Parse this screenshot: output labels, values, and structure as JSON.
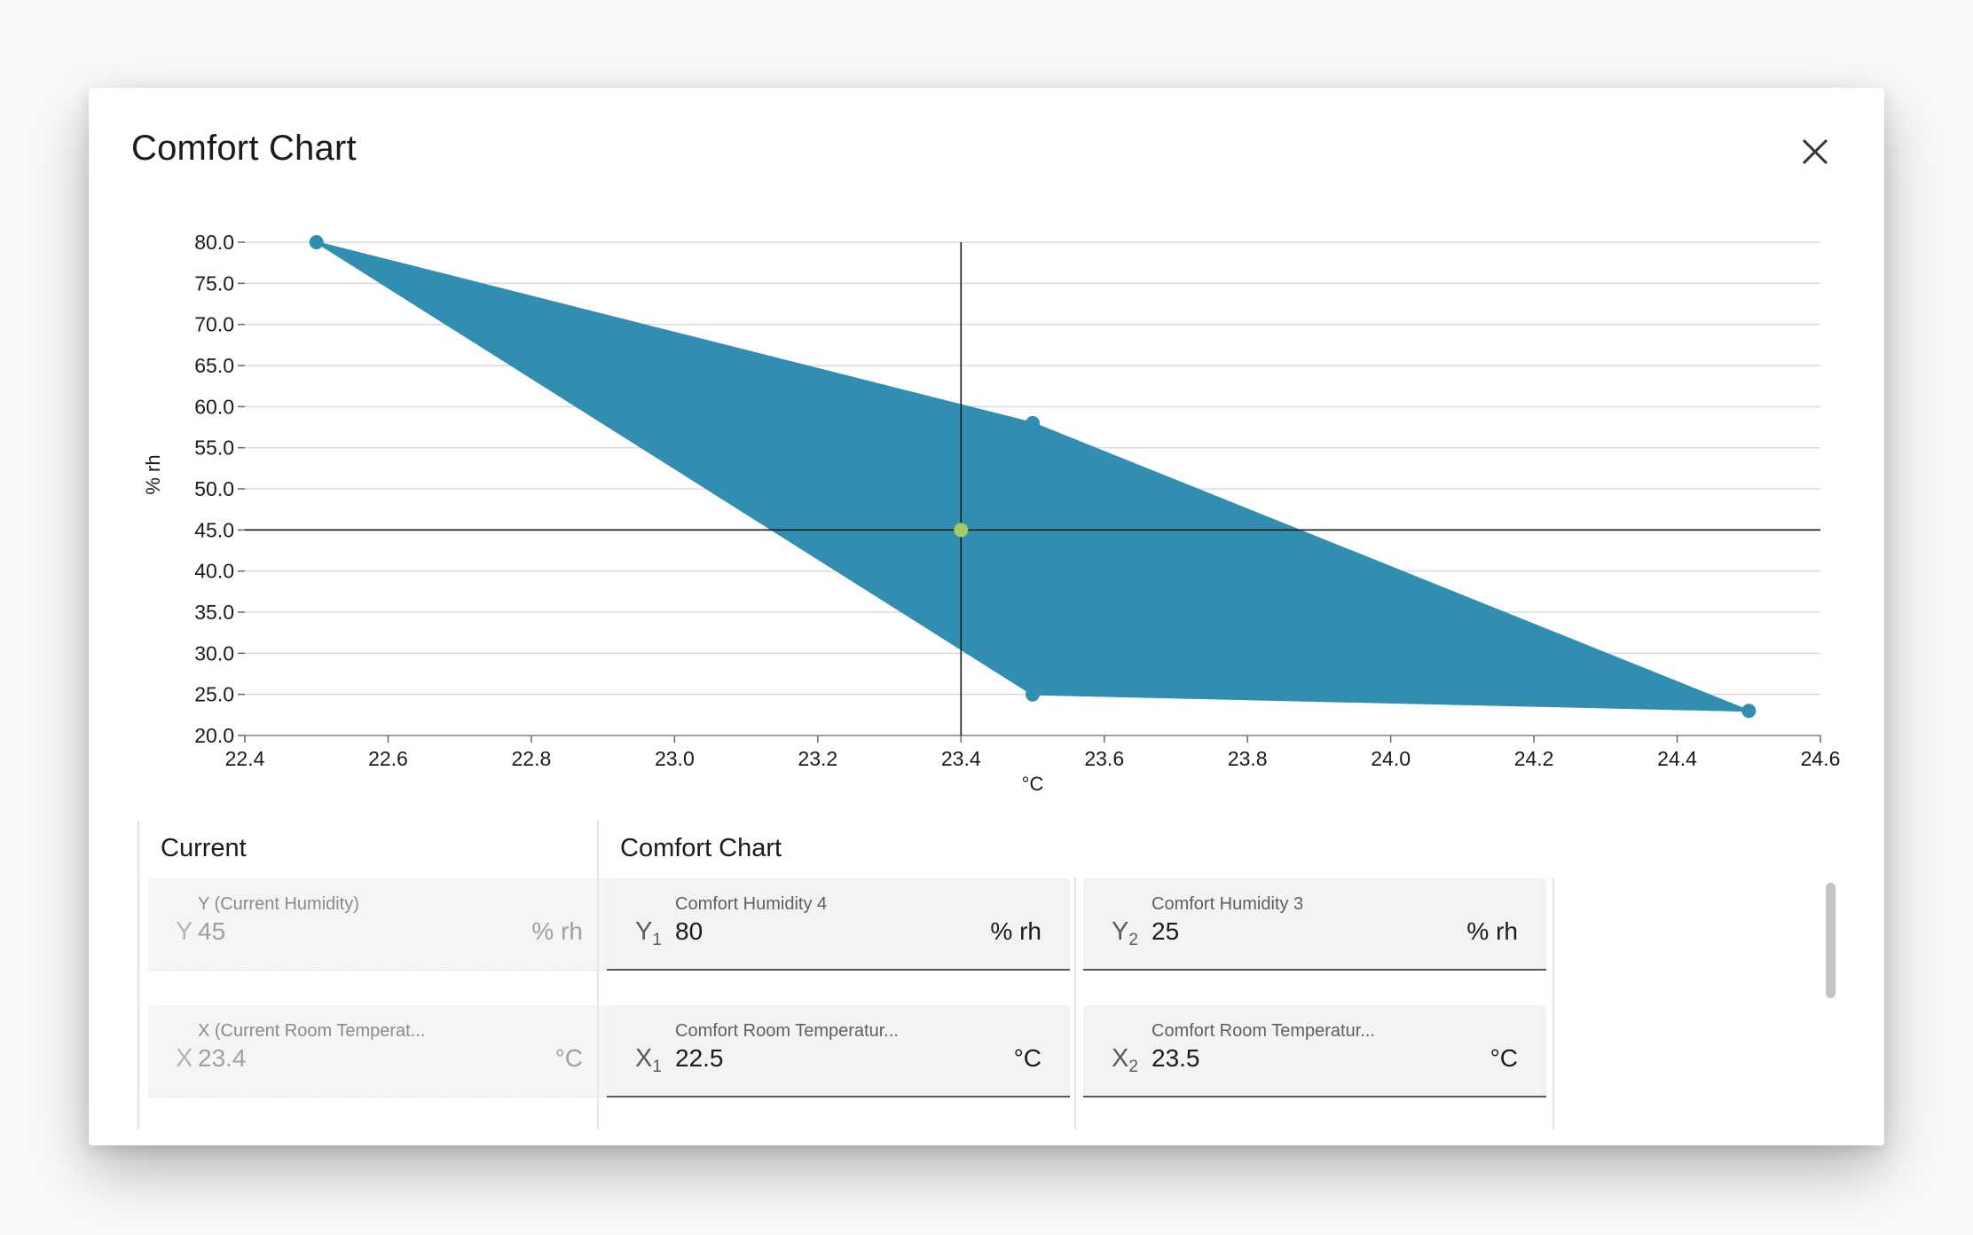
{
  "dialog": {
    "title": "Comfort Chart",
    "close_icon": "close-icon"
  },
  "chart_data": {
    "type": "area",
    "xlabel": "°C",
    "ylabel": "% rh",
    "xlim": [
      22.4,
      24.6
    ],
    "ylim": [
      20.0,
      80.0
    ],
    "x_ticks": [
      "22.4",
      "22.6",
      "22.8",
      "23.0",
      "23.2",
      "23.4",
      "23.6",
      "23.8",
      "24.0",
      "24.2",
      "24.4",
      "24.6"
    ],
    "y_ticks": [
      "80.0",
      "75.0",
      "70.0",
      "65.0",
      "60.0",
      "55.0",
      "50.0",
      "45.0",
      "40.0",
      "35.0",
      "30.0",
      "25.0",
      "20.0"
    ],
    "grid": true,
    "comfort_zone": {
      "color": "#318eb1",
      "polygon": [
        {
          "x": 22.5,
          "y": 80.0
        },
        {
          "x": 23.5,
          "y": 58.0
        },
        {
          "x": 24.5,
          "y": 23.0
        },
        {
          "x": 23.5,
          "y": 25.0
        }
      ]
    },
    "current_point": {
      "x": 23.4,
      "y": 45.0,
      "color": "#a3c96b"
    },
    "crosshair_color": "#1a1a1a"
  },
  "current_section": {
    "title": "Current",
    "fields": [
      {
        "label": "Y (Current Humidity)",
        "prefix": "Y",
        "value": "45",
        "unit": "% rh"
      },
      {
        "label": "X (Current Room Temperat...",
        "prefix": "X",
        "value": "23.4",
        "unit": "°C"
      }
    ]
  },
  "comfort_section": {
    "title": "Comfort Chart",
    "fields": [
      {
        "label": "Comfort Humidity 4",
        "prefix": "Y",
        "sub": "1",
        "value": "80",
        "unit": "% rh"
      },
      {
        "label": "Comfort Humidity 3",
        "prefix": "Y",
        "sub": "2",
        "value": "25",
        "unit": "% rh"
      },
      {
        "label": "Comfort Room Temperatur...",
        "prefix": "X",
        "sub": "1",
        "value": "22.5",
        "unit": "°C"
      },
      {
        "label": "Comfort Room Temperatur...",
        "prefix": "X",
        "sub": "2",
        "value": "23.5",
        "unit": "°C"
      }
    ]
  }
}
